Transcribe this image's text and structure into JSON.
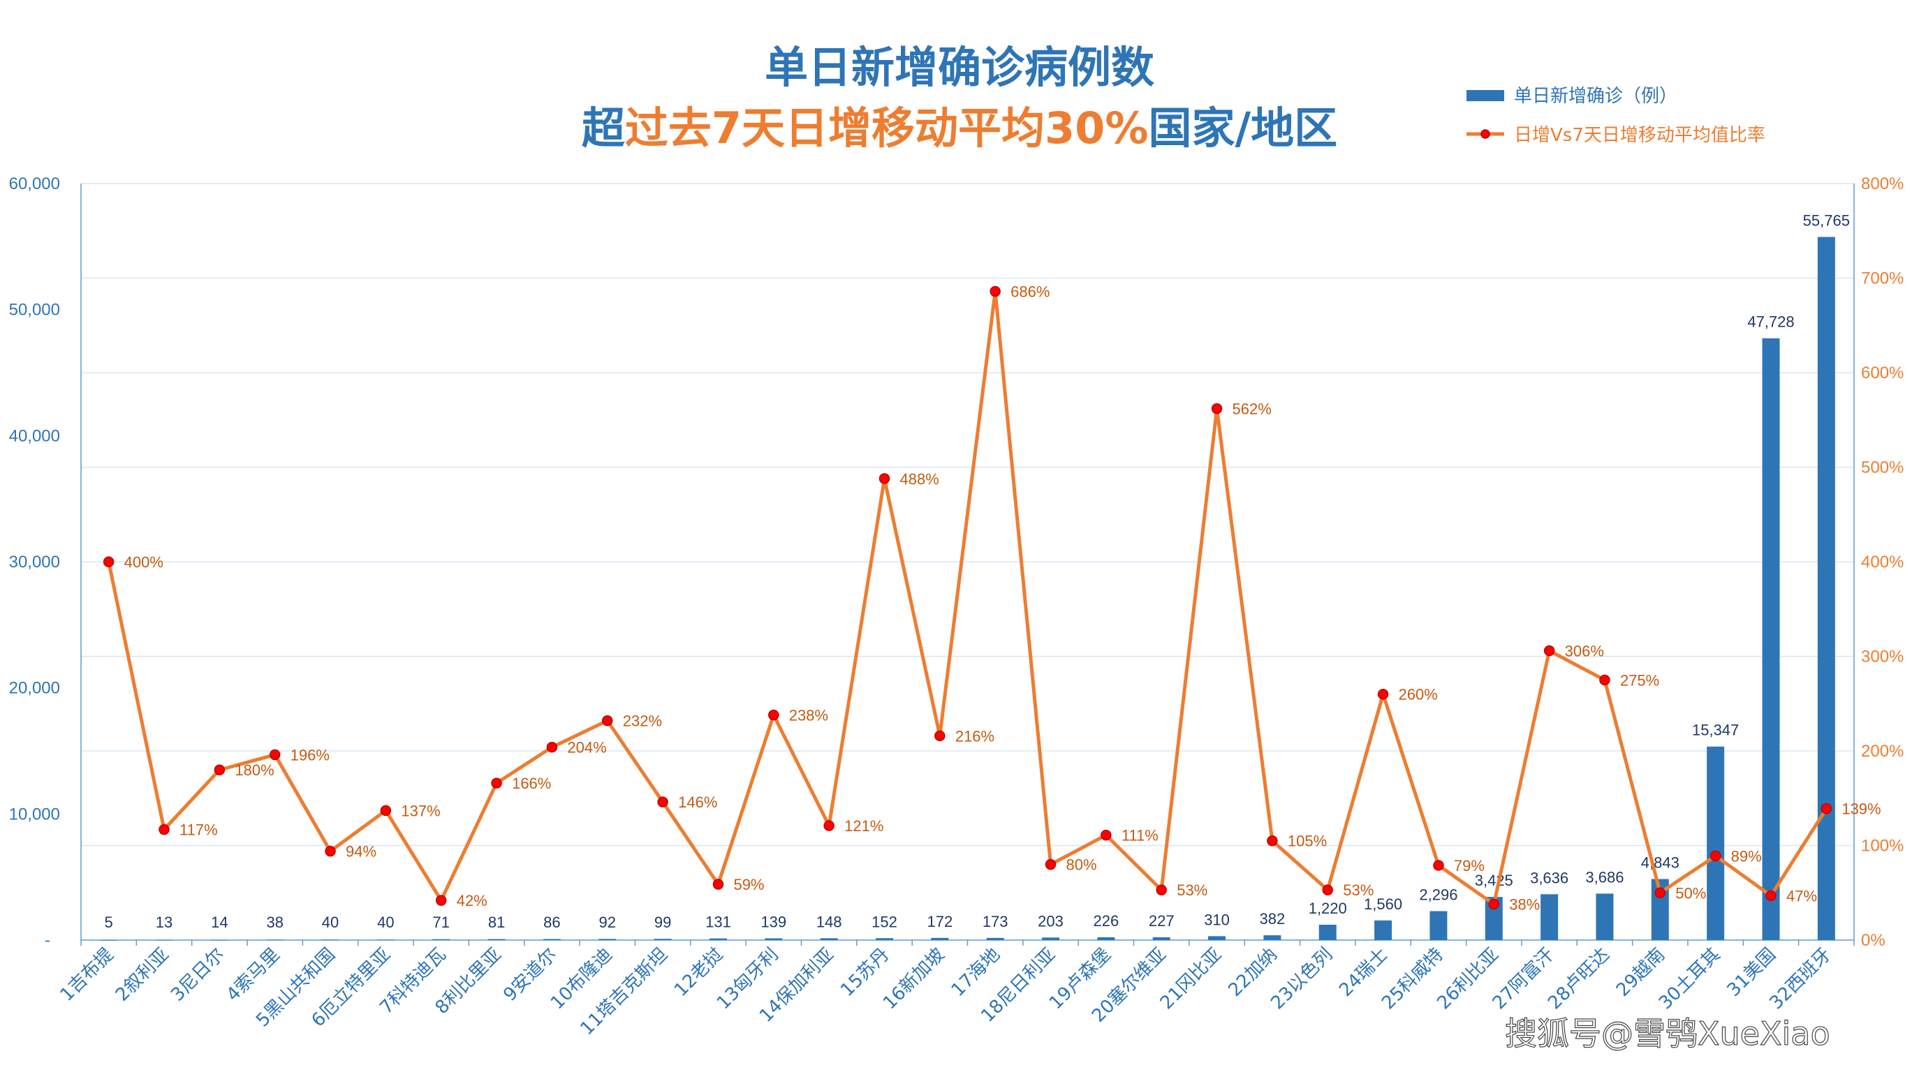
{
  "title": {
    "line1": "单日新增确诊病例数",
    "line2_parts": [
      {
        "text": "超",
        "color": "#2E75B6"
      },
      {
        "text": "过去7天日增移动平均30%",
        "color": "#ED7D31"
      },
      {
        "text": "国家/地区",
        "color": "#2E75B6"
      }
    ]
  },
  "colors": {
    "bar": "#2E75B6",
    "line": "#ED7D31",
    "marker": "#FF0000",
    "grid": "#D9E6F2",
    "left_axis_text": "#2E75B6",
    "right_axis_text": "#ED7D31"
  },
  "legend": {
    "items": [
      {
        "label": "单日新增确诊（例）",
        "kind": "bar"
      },
      {
        "label": "日增Vs7天日增移动平均值比率",
        "kind": "line"
      }
    ]
  },
  "watermark": "搜狐号@雪鸮XueXiao",
  "chart_data": {
    "type": "bar+line",
    "categories": [
      "1吉布提",
      "2叙利亚",
      "3尼日尔",
      "4索马里",
      "5黑山共和国",
      "6厄立特里亚",
      "7科特迪瓦",
      "8利比里亚",
      "9安道尔",
      "10布隆迪",
      "11塔吉克斯坦",
      "12老挝",
      "13匈牙利",
      "14保加利亚",
      "15苏丹",
      "16新加坡",
      "17海地",
      "18尼日利亚",
      "19卢森堡",
      "20塞尔维亚",
      "21冈比亚",
      "22加纳",
      "23以色列",
      "24瑞士",
      "25科威特",
      "26利比亚",
      "27阿富汗",
      "28卢旺达",
      "29越南",
      "30土耳其",
      "31美国",
      "32西班牙"
    ],
    "series": [
      {
        "name": "单日新增确诊（例）",
        "type": "bar",
        "axis": "left",
        "values": [
          5,
          13,
          14,
          38,
          40,
          40,
          71,
          81,
          86,
          92,
          99,
          131,
          139,
          148,
          152,
          172,
          173,
          203,
          226,
          227,
          310,
          382,
          1220,
          1560,
          2296,
          3425,
          3636,
          3686,
          4843,
          15347,
          47728,
          55765
        ],
        "labels": [
          "5",
          "13",
          "14",
          "38",
          "40",
          "40",
          "71",
          "81",
          "86",
          "92",
          "99",
          "131",
          "139",
          "148",
          "152",
          "172",
          "173",
          "203",
          "226",
          "227",
          "310",
          "382",
          "1,220",
          "1,560",
          "2,296",
          "3,425",
          "3,636",
          "3,686",
          "4,843",
          "15,347",
          "47,728",
          "55,765"
        ]
      },
      {
        "name": "日增Vs7天日增移动平均值比率",
        "type": "line",
        "axis": "right",
        "values": [
          400,
          117,
          180,
          196,
          94,
          137,
          42,
          166,
          204,
          232,
          146,
          59,
          238,
          121,
          488,
          216,
          686,
          80,
          111,
          53,
          562,
          105,
          53,
          260,
          79,
          38,
          306,
          275,
          50,
          89,
          47,
          139
        ],
        "labels": [
          "400%",
          "117%",
          "180%",
          "196%",
          "94%",
          "137%",
          "42%",
          "166%",
          "204%",
          "232%",
          "146%",
          "59%",
          "238%",
          "121%",
          "488%",
          "216%",
          "686%",
          "80%",
          "111%",
          "53%",
          "562%",
          "105%",
          "53%",
          "260%",
          "79%",
          "38%",
          "306%",
          "275%",
          "50%",
          "89%",
          "47%",
          "139%"
        ]
      }
    ],
    "left_axis": {
      "ylim": [
        0,
        60000
      ],
      "ticks": [
        0,
        10000,
        20000,
        30000,
        40000,
        50000,
        60000
      ],
      "tick_labels": [
        "-",
        "10,000",
        "20,000",
        "30,000",
        "40,000",
        "50,000",
        "60,000"
      ]
    },
    "right_axis": {
      "ylim": [
        0,
        800
      ],
      "ticks": [
        0,
        100,
        200,
        300,
        400,
        500,
        600,
        700,
        800
      ],
      "tick_labels": [
        "0%",
        "100%",
        "200%",
        "300%",
        "400%",
        "500%",
        "600%",
        "700%",
        "800%"
      ]
    },
    "grid": true,
    "legend_position": "top-right"
  }
}
